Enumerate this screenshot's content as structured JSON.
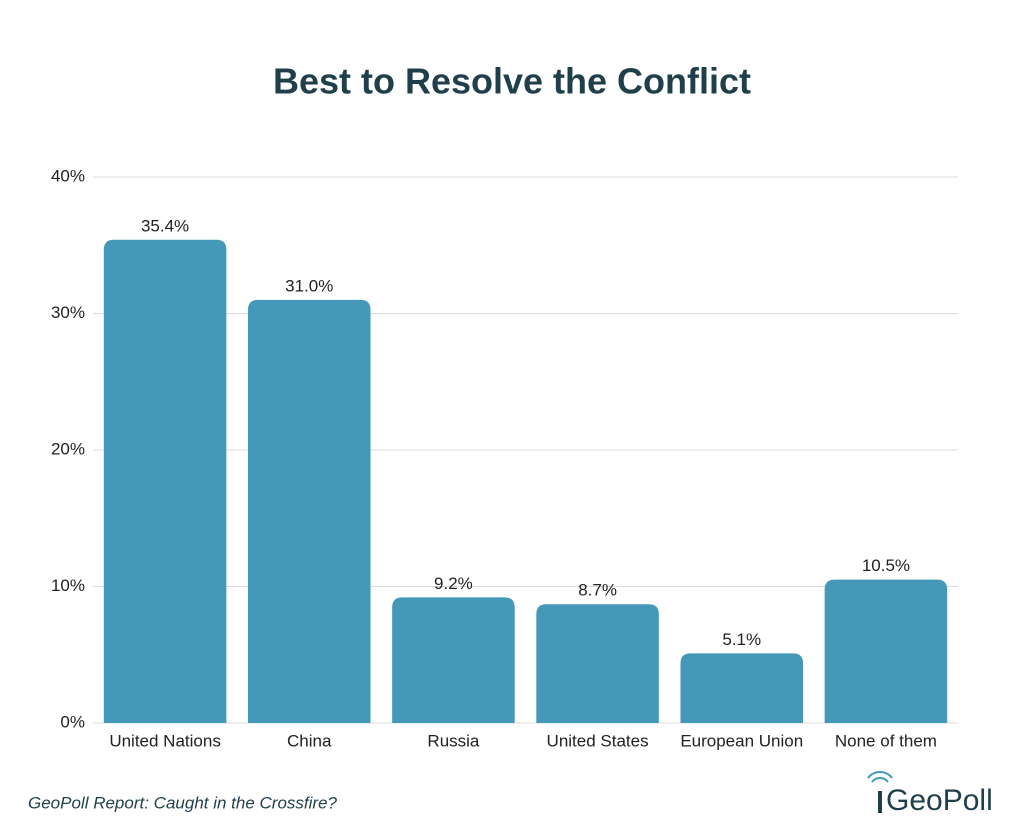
{
  "chart_data": {
    "type": "bar",
    "title": "Best to Resolve the Conflict",
    "categories": [
      "United Nations",
      "China",
      "Russia",
      "United States",
      "European Union",
      "None of them"
    ],
    "values": [
      35.4,
      31.0,
      9.2,
      8.7,
      5.1,
      10.5
    ],
    "value_labels": [
      "35.4%",
      "31.0%",
      "9.2%",
      "8.7%",
      "5.1%",
      "10.5%"
    ],
    "color": "#4499b8",
    "ylim": [
      0,
      40
    ],
    "yticks": [
      {
        "value": 0,
        "label": "0%"
      },
      {
        "value": 10,
        "label": "10%"
      },
      {
        "value": 20,
        "label": "20%"
      },
      {
        "value": 30,
        "label": "30%"
      },
      {
        "value": 40,
        "label": "40%"
      }
    ],
    "grid": true,
    "source": "GeoPoll Report: Caught in the Crossfire?",
    "logo": "GeoPoll"
  }
}
